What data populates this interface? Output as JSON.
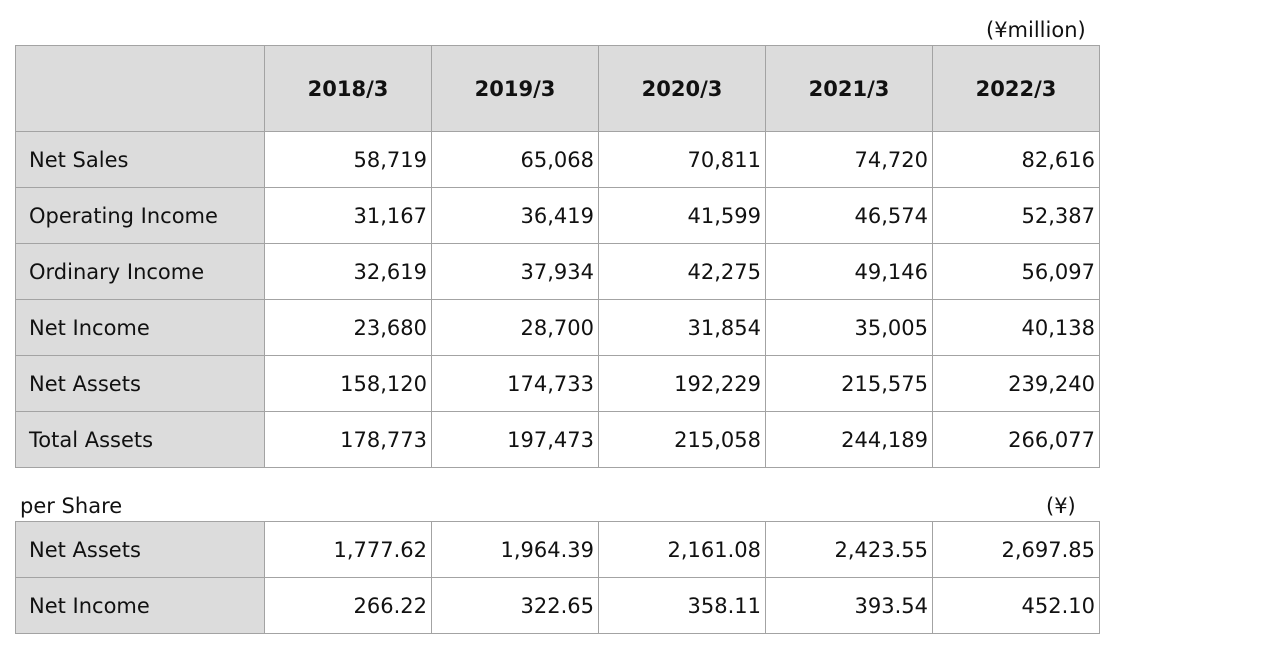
{
  "main_table": {
    "unit": "(¥million)",
    "years": [
      "2018/3",
      "2019/3",
      "2020/3",
      "2021/3",
      "2022/3"
    ],
    "rows": [
      {
        "label": "Net Sales",
        "values": [
          "58,719",
          "65,068",
          "70,811",
          "74,720",
          "82,616"
        ]
      },
      {
        "label": "Operating Income",
        "values": [
          "31,167",
          "36,419",
          "41,599",
          "46,574",
          "52,387"
        ]
      },
      {
        "label": "Ordinary Income",
        "values": [
          "32,619",
          "37,934",
          "42,275",
          "49,146",
          "56,097"
        ]
      },
      {
        "label": "Net Income",
        "values": [
          "23,680",
          "28,700",
          "31,854",
          "35,005",
          "40,138"
        ]
      },
      {
        "label": "Net Assets",
        "values": [
          "158,120",
          "174,733",
          "192,229",
          "215,575",
          "239,240"
        ]
      },
      {
        "label": "Total Assets",
        "values": [
          "178,773",
          "197,473",
          "215,058",
          "244,189",
          "266,077"
        ]
      }
    ]
  },
  "per_share_table": {
    "title": "per Share",
    "unit": "(¥)",
    "rows": [
      {
        "label": "Net Assets",
        "values": [
          "1,777.62",
          "1,964.39",
          "2,161.08",
          "2,423.55",
          "2,697.85"
        ]
      },
      {
        "label": "Net Income",
        "values": [
          "266.22",
          "322.65",
          "358.11",
          "393.54",
          "452.10"
        ]
      }
    ]
  }
}
